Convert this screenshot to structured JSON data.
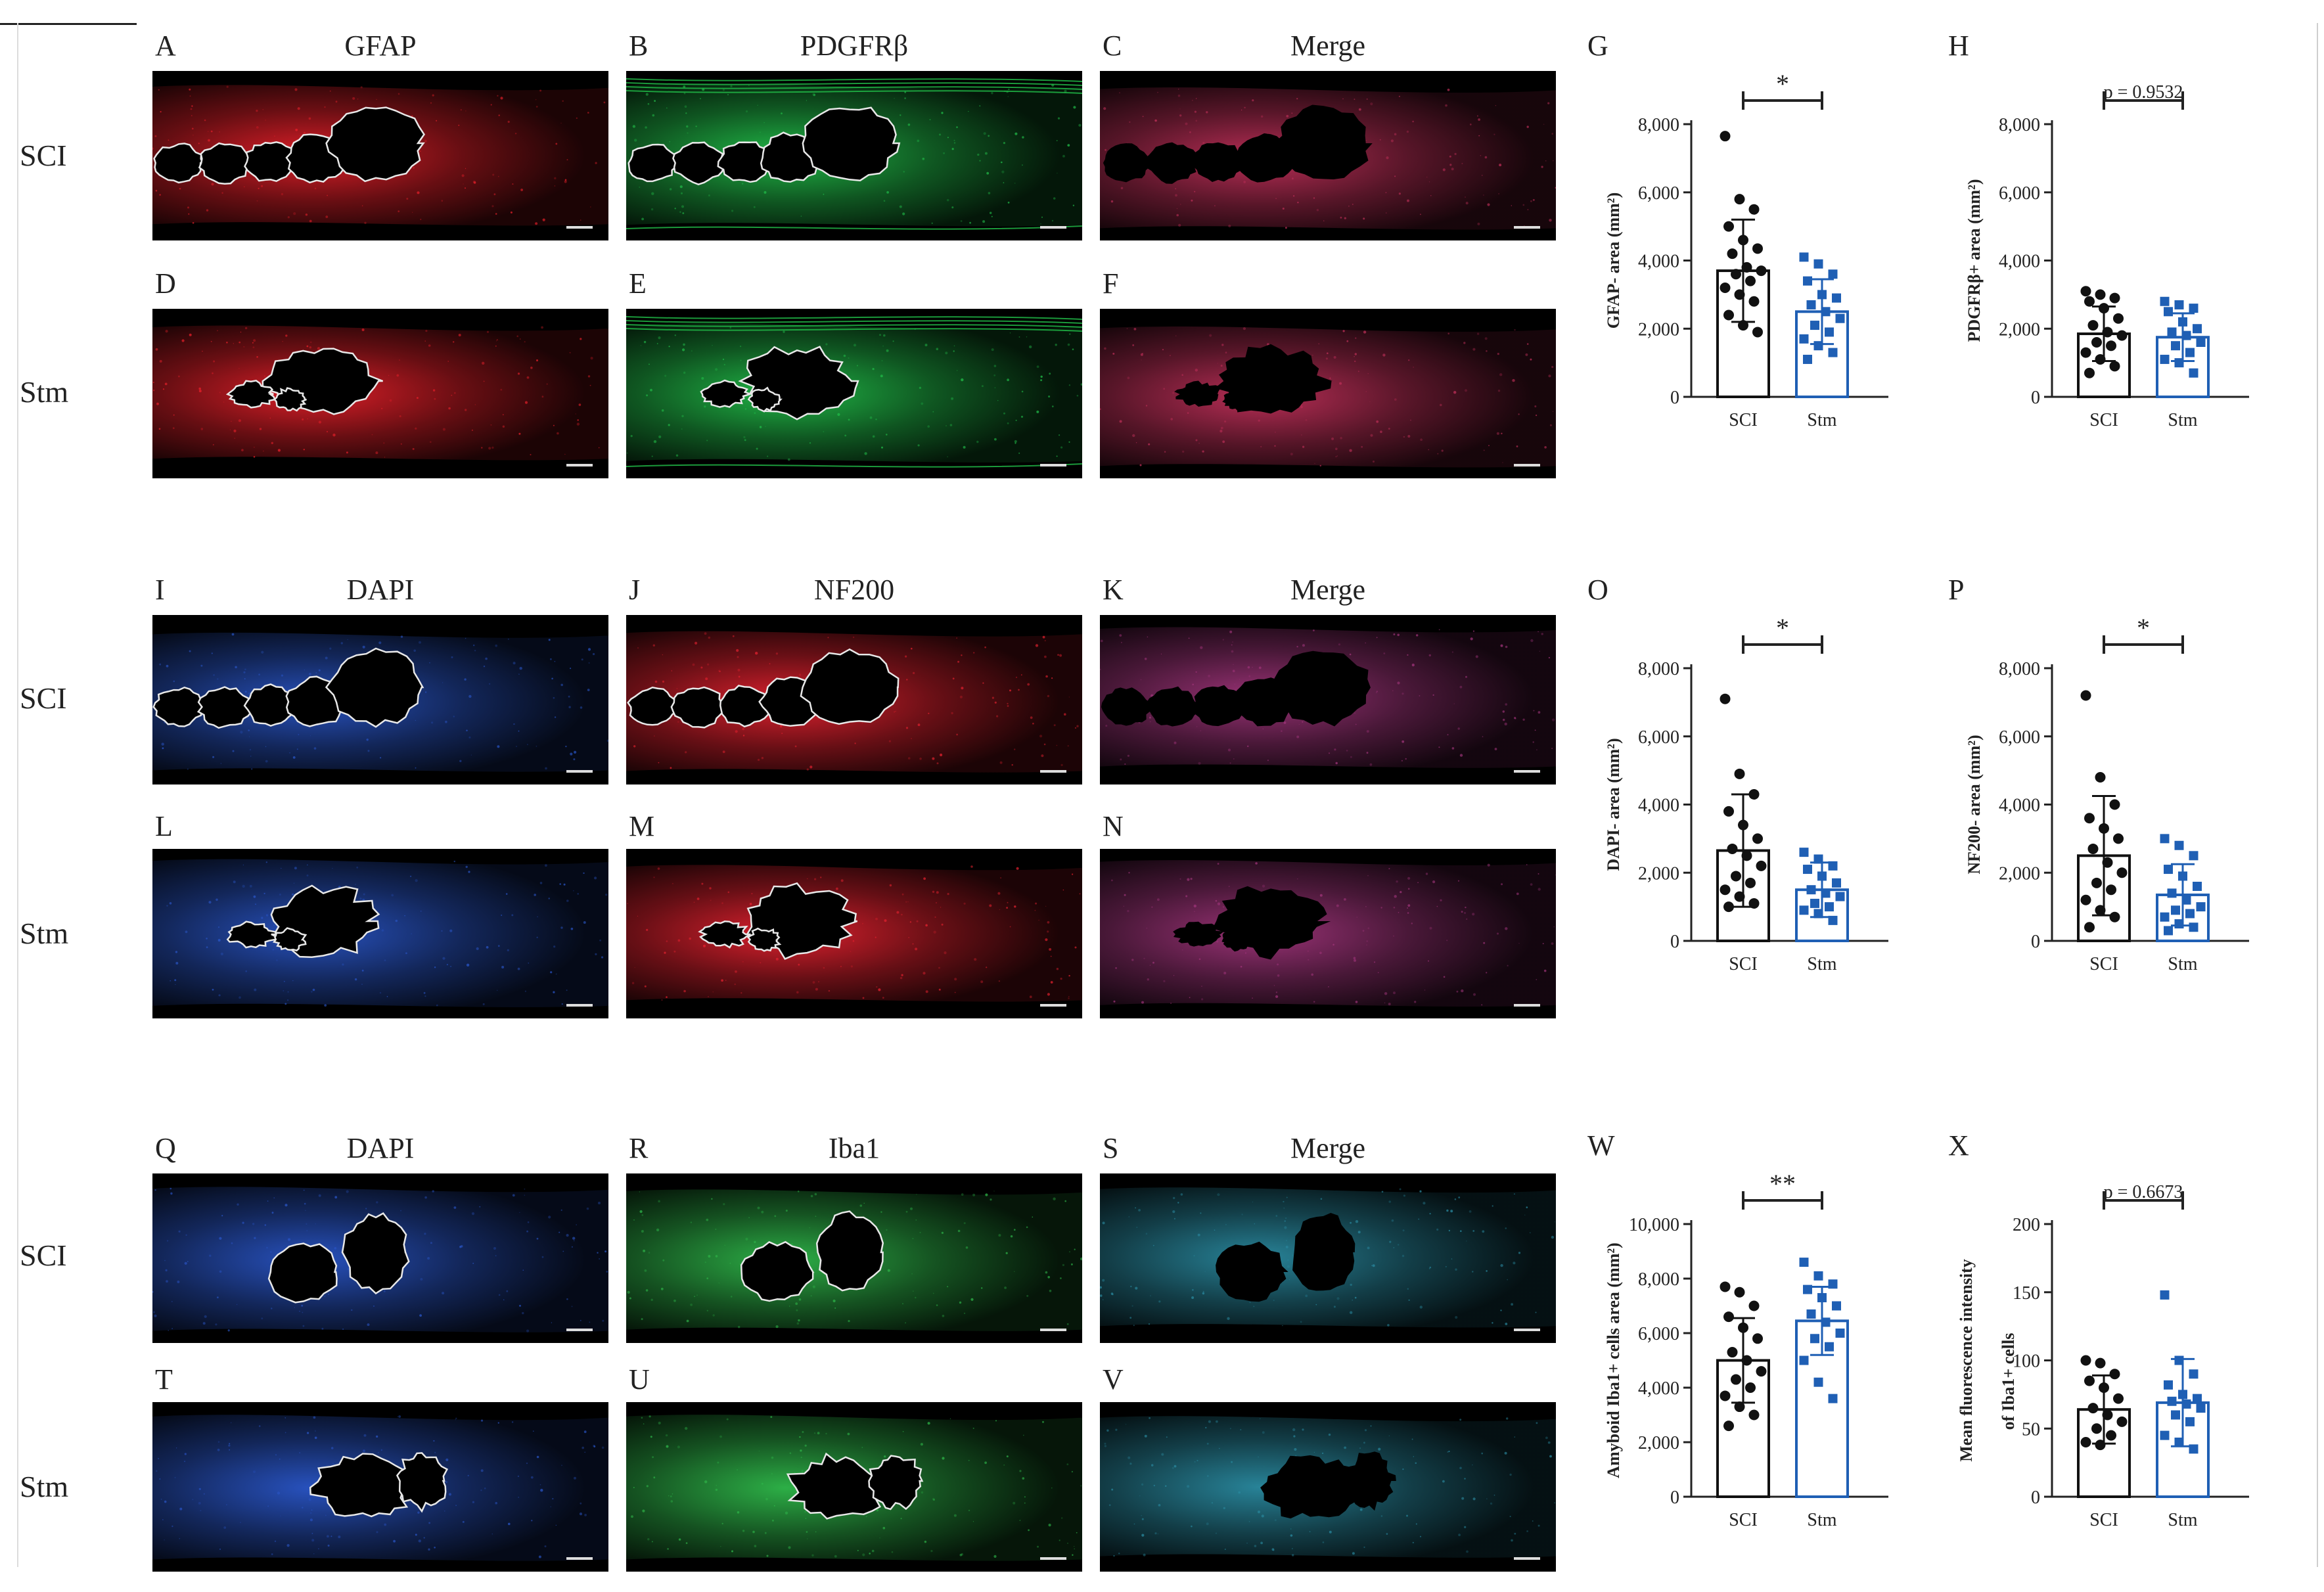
{
  "rows": {
    "sci": "SCI",
    "stm": "Stm"
  },
  "sections": [
    {
      "columns": [
        {
          "letter": "A",
          "title": "GFAP"
        },
        {
          "letter": "B",
          "title": "PDGFRβ"
        },
        {
          "letter": "C",
          "title": "Merge"
        }
      ],
      "second_row_letters": [
        "D",
        "E",
        "F"
      ]
    },
    {
      "columns": [
        {
          "letter": "I",
          "title": "DAPI"
        },
        {
          "letter": "J",
          "title": "NF200"
        },
        {
          "letter": "K",
          "title": "Merge"
        }
      ],
      "second_row_letters": [
        "L",
        "M",
        "N"
      ]
    },
    {
      "columns": [
        {
          "letter": "Q",
          "title": "DAPI"
        },
        {
          "letter": "R",
          "title": "Iba1"
        },
        {
          "letter": "S",
          "title": "Merge"
        }
      ],
      "second_row_letters": [
        "T",
        "U",
        "V"
      ]
    }
  ],
  "colors": {
    "sci_bar": "#111111",
    "stm_bar": "#1f5fb4",
    "gfap": "#e8202a",
    "pdgfr": "#22c04a",
    "dapi": "#2a56c8",
    "nf200": "#e82230",
    "iba1": "#2fb84a"
  },
  "chart_data": [
    {
      "panel": "G",
      "type": "bar",
      "categories": [
        "SCI",
        "Stm"
      ],
      "ylabel": "GFAP- area (mm²)",
      "ylim": [
        0,
        8000
      ],
      "yticks": [
        "0",
        "2,000",
        "4,000",
        "6,000",
        "8,000"
      ],
      "ytick_values": [
        0,
        2000,
        4000,
        6000,
        8000
      ],
      "means": [
        3700,
        2500
      ],
      "sd": [
        1500,
        950
      ],
      "significance": "*",
      "points": [
        [
          7650,
          5800,
          5500,
          5000,
          4600,
          4350,
          4200,
          3800,
          3700,
          3600,
          3400,
          3200,
          3000,
          2800,
          2400,
          2100,
          1900
        ],
        [
          4100,
          3900,
          3600,
          3400,
          3000,
          2900,
          2700,
          2500,
          2300,
          2100,
          1900,
          1700,
          1500,
          1300,
          1100
        ]
      ]
    },
    {
      "panel": "H",
      "type": "bar",
      "categories": [
        "SCI",
        "Stm"
      ],
      "ylabel": "PDGFRβ+ area (mm²)",
      "ylim": [
        0,
        8000
      ],
      "yticks": [
        "0",
        "2,000",
        "4,000",
        "6,000",
        "8,000"
      ],
      "ytick_values": [
        0,
        2000,
        4000,
        6000,
        8000
      ],
      "means": [
        1850,
        1750
      ],
      "sd": [
        800,
        700
      ],
      "significance": "p = 0.9532",
      "points": [
        [
          3100,
          3000,
          2900,
          2800,
          2600,
          2300,
          2100,
          1900,
          1800,
          1600,
          1500,
          1300,
          1100,
          900,
          700
        ],
        [
          2800,
          2700,
          2600,
          2500,
          2200,
          2000,
          1900,
          1800,
          1600,
          1500,
          1300,
          1100,
          1000,
          700
        ]
      ]
    },
    {
      "panel": "O",
      "type": "bar",
      "categories": [
        "SCI",
        "Stm"
      ],
      "ylabel": "DAPI- area (mm²)",
      "ylim": [
        0,
        8000
      ],
      "yticks": [
        "0",
        "2,000",
        "4,000",
        "6,000",
        "8,000"
      ],
      "ytick_values": [
        0,
        2000,
        4000,
        6000,
        8000
      ],
      "means": [
        2650,
        1500
      ],
      "sd": [
        1650,
        800
      ],
      "significance": "*",
      "points": [
        [
          7100,
          4900,
          4300,
          3800,
          3400,
          3000,
          2700,
          2500,
          2200,
          1900,
          1700,
          1500,
          1300,
          1100,
          1000
        ],
        [
          2600,
          2400,
          2200,
          2100,
          1900,
          1700,
          1500,
          1400,
          1300,
          1100,
          1000,
          900,
          800,
          600
        ]
      ]
    },
    {
      "panel": "P",
      "type": "bar",
      "categories": [
        "SCI",
        "Stm"
      ],
      "ylabel": "NF200- area (mm²)",
      "ylim": [
        0,
        8000
      ],
      "yticks": [
        "0",
        "2,000",
        "4,000",
        "6,000",
        "8,000"
      ],
      "ytick_values": [
        0,
        2000,
        4000,
        6000,
        8000
      ],
      "means": [
        2500,
        1350
      ],
      "sd": [
        1750,
        900
      ],
      "significance": "*",
      "points": [
        [
          7200,
          4800,
          4000,
          3600,
          3300,
          3000,
          2700,
          2300,
          2000,
          1700,
          1500,
          1200,
          900,
          700,
          400
        ],
        [
          3000,
          2800,
          2500,
          2100,
          1900,
          1600,
          1400,
          1200,
          1000,
          900,
          800,
          700,
          500,
          400,
          300
        ]
      ]
    },
    {
      "panel": "W",
      "type": "bar",
      "categories": [
        "SCI",
        "Stm"
      ],
      "ylabel": "Amyboid Iba1+ cells area (mm²)",
      "ylim": [
        0,
        10000
      ],
      "yticks": [
        "0",
        "2,000",
        "4,000",
        "6,000",
        "8,000",
        "10,000"
      ],
      "ytick_values": [
        0,
        2000,
        4000,
        6000,
        8000,
        10000
      ],
      "means": [
        5000,
        6450
      ],
      "sd": [
        1550,
        1250
      ],
      "significance": "**",
      "points": [
        [
          7700,
          7500,
          7000,
          6600,
          6200,
          5800,
          5300,
          5000,
          4600,
          4300,
          4000,
          3700,
          3300,
          3000,
          2600
        ],
        [
          8600,
          8100,
          7800,
          7600,
          7300,
          7000,
          6700,
          6400,
          6000,
          5800,
          5500,
          5000,
          4200,
          3600
        ]
      ]
    },
    {
      "panel": "X",
      "type": "bar",
      "categories": [
        "SCI",
        "Stm"
      ],
      "ylabel": "Mean fluorescence intensity of Iba1+ cells",
      "ylabel_lines": [
        "Mean fluorescence intensity",
        "of Iba1+ cells"
      ],
      "ylim": [
        0,
        200
      ],
      "yticks": [
        "0",
        "50",
        "100",
        "150",
        "200"
      ],
      "ytick_values": [
        0,
        50,
        100,
        150,
        200
      ],
      "means": [
        64,
        69
      ],
      "sd": [
        25,
        32
      ],
      "significance": "p = 0.6673",
      "points": [
        [
          100,
          98,
          90,
          85,
          80,
          72,
          65,
          60,
          55,
          50,
          45,
          40,
          38
        ],
        [
          148,
          100,
          90,
          82,
          75,
          72,
          70,
          68,
          65,
          60,
          55,
          45,
          40,
          35
        ]
      ]
    }
  ]
}
